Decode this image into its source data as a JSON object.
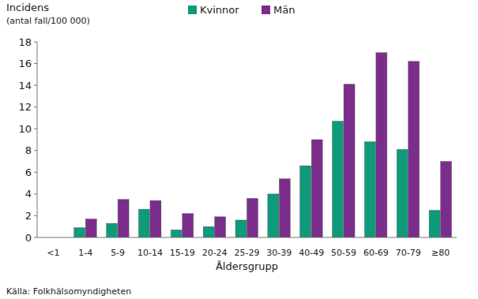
{
  "chart_data": {
    "type": "bar",
    "title": "Incidens",
    "subtitle": "(antal fall/100 000)",
    "x_label": "Åldersgrupp",
    "annotations": [
      "Källa: Folkhälsomyndigheten"
    ],
    "categories": [
      "<1",
      "1-4",
      "5-9",
      "10-14",
      "15-19",
      "20-24",
      "25-29",
      "30-39",
      "40-49",
      "50-59",
      "60-69",
      "70-79",
      "≥80"
    ],
    "series": [
      {
        "name": "Kvinnor",
        "color": "#0f9a7c",
        "values": [
          0,
          0.9,
          1.3,
          2.6,
          0.7,
          1.0,
          1.6,
          4.0,
          6.6,
          10.7,
          8.8,
          8.1,
          2.5
        ]
      },
      {
        "name": "Män",
        "color": "#7b2d8c",
        "values": [
          0,
          1.7,
          3.5,
          3.4,
          2.2,
          1.9,
          3.6,
          5.4,
          9.0,
          14.1,
          17.0,
          16.2,
          7.0
        ]
      }
    ],
    "ylim": [
      0,
      18
    ],
    "yticks": [
      0,
      2,
      4,
      6,
      8,
      10,
      12,
      14,
      16,
      18
    ],
    "grid": false,
    "legend": "top"
  }
}
